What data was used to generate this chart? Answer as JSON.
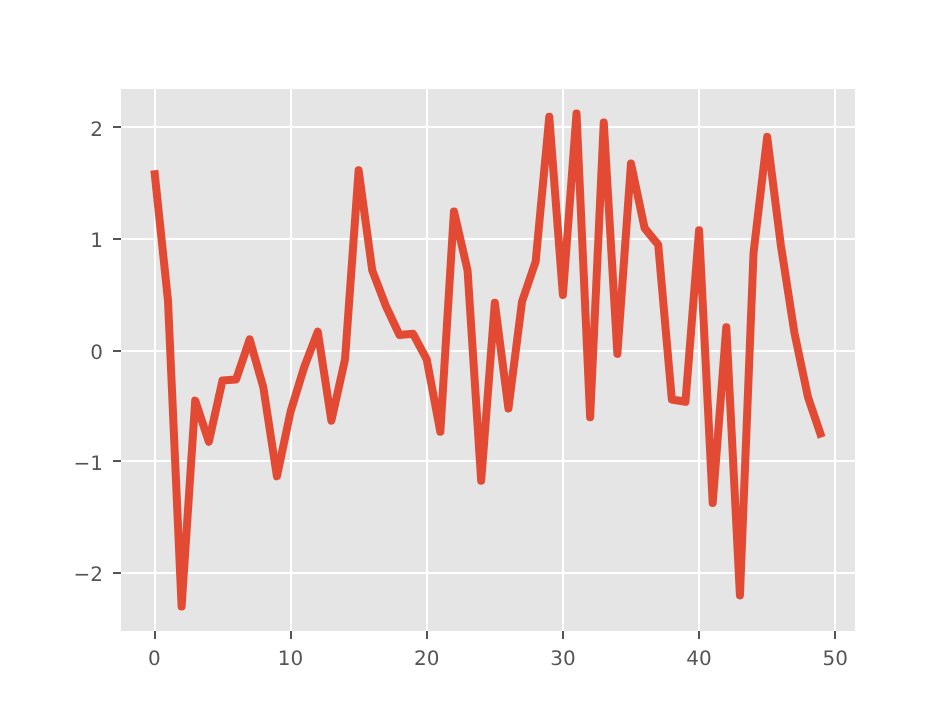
{
  "chart_data": {
    "type": "line",
    "x": [
      0,
      1,
      2,
      3,
      4,
      5,
      6,
      7,
      8,
      9,
      10,
      11,
      12,
      13,
      14,
      15,
      16,
      17,
      18,
      19,
      20,
      21,
      22,
      23,
      24,
      25,
      26,
      27,
      28,
      29,
      30,
      31,
      32,
      33,
      34,
      35,
      36,
      37,
      38,
      39,
      40,
      41,
      42,
      43,
      44,
      45,
      46,
      47,
      48,
      49
    ],
    "series": [
      {
        "color": "#e24a33",
        "values": [
          1.62,
          0.45,
          -2.3,
          -0.45,
          -0.82,
          -0.27,
          -0.26,
          0.1,
          -0.33,
          -1.13,
          -0.55,
          -0.15,
          0.17,
          -0.63,
          -0.08,
          1.62,
          0.72,
          0.4,
          0.14,
          0.15,
          -0.08,
          -0.73,
          1.25,
          0.72,
          -1.17,
          0.43,
          -0.52,
          0.44,
          0.8,
          2.1,
          0.5,
          2.13,
          -0.6,
          2.05,
          -0.03,
          1.68,
          1.1,
          0.95,
          -0.44,
          -0.46,
          1.08,
          -1.37,
          0.21,
          -2.2,
          0.88,
          1.92,
          0.95,
          0.16,
          -0.42,
          -0.78
        ]
      }
    ],
    "xlim": [
      -2.45,
      51.45
    ],
    "ylim": [
      -2.52,
      2.35
    ],
    "xticks": [
      0,
      10,
      20,
      30,
      40,
      50
    ],
    "yticks": [
      -2,
      -1,
      0,
      1,
      2
    ],
    "grid": true,
    "marker": "none",
    "line_style": "solid"
  }
}
